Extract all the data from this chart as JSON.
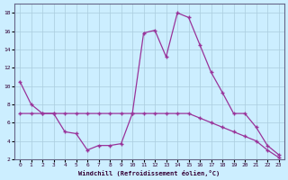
{
  "xlabel": "Windchill (Refroidissement éolien,°C)",
  "background_color": "#cceeff",
  "line_color": "#993399",
  "grid_color": "#aaccdd",
  "line1_x": [
    0,
    1,
    2,
    3,
    4,
    5,
    6,
    7,
    8,
    9,
    10,
    11,
    12,
    13,
    14,
    15,
    16,
    17,
    18,
    19,
    20,
    21,
    22,
    23
  ],
  "line1_y": [
    10.5,
    8.0,
    7.0,
    7.0,
    5.0,
    4.8,
    3.0,
    3.5,
    3.5,
    3.7,
    7.0,
    15.8,
    16.1,
    13.2,
    18.0,
    17.5,
    14.5,
    11.5,
    9.3,
    7.0,
    7.0,
    5.5,
    3.5,
    2.5
  ],
  "line2_x": [
    0,
    1,
    2,
    3,
    4,
    5,
    6,
    7,
    8,
    9,
    10,
    11,
    12,
    13,
    14,
    15,
    16,
    17,
    18,
    19,
    20,
    21,
    22,
    23
  ],
  "line2_y": [
    7.0,
    7.0,
    7.0,
    7.0,
    7.0,
    7.0,
    7.0,
    7.0,
    7.0,
    7.0,
    7.0,
    7.0,
    7.0,
    7.0,
    7.0,
    7.0,
    6.5,
    6.0,
    5.5,
    5.0,
    4.5,
    4.0,
    3.0,
    2.2
  ],
  "ylim": [
    2,
    19
  ],
  "xlim_min": -0.5,
  "xlim_max": 23.5,
  "yticks": [
    2,
    4,
    6,
    8,
    10,
    12,
    14,
    16,
    18
  ],
  "xticks": [
    0,
    1,
    2,
    3,
    4,
    5,
    6,
    7,
    8,
    9,
    10,
    11,
    12,
    13,
    14,
    15,
    16,
    17,
    18,
    19,
    20,
    21,
    22,
    23
  ]
}
